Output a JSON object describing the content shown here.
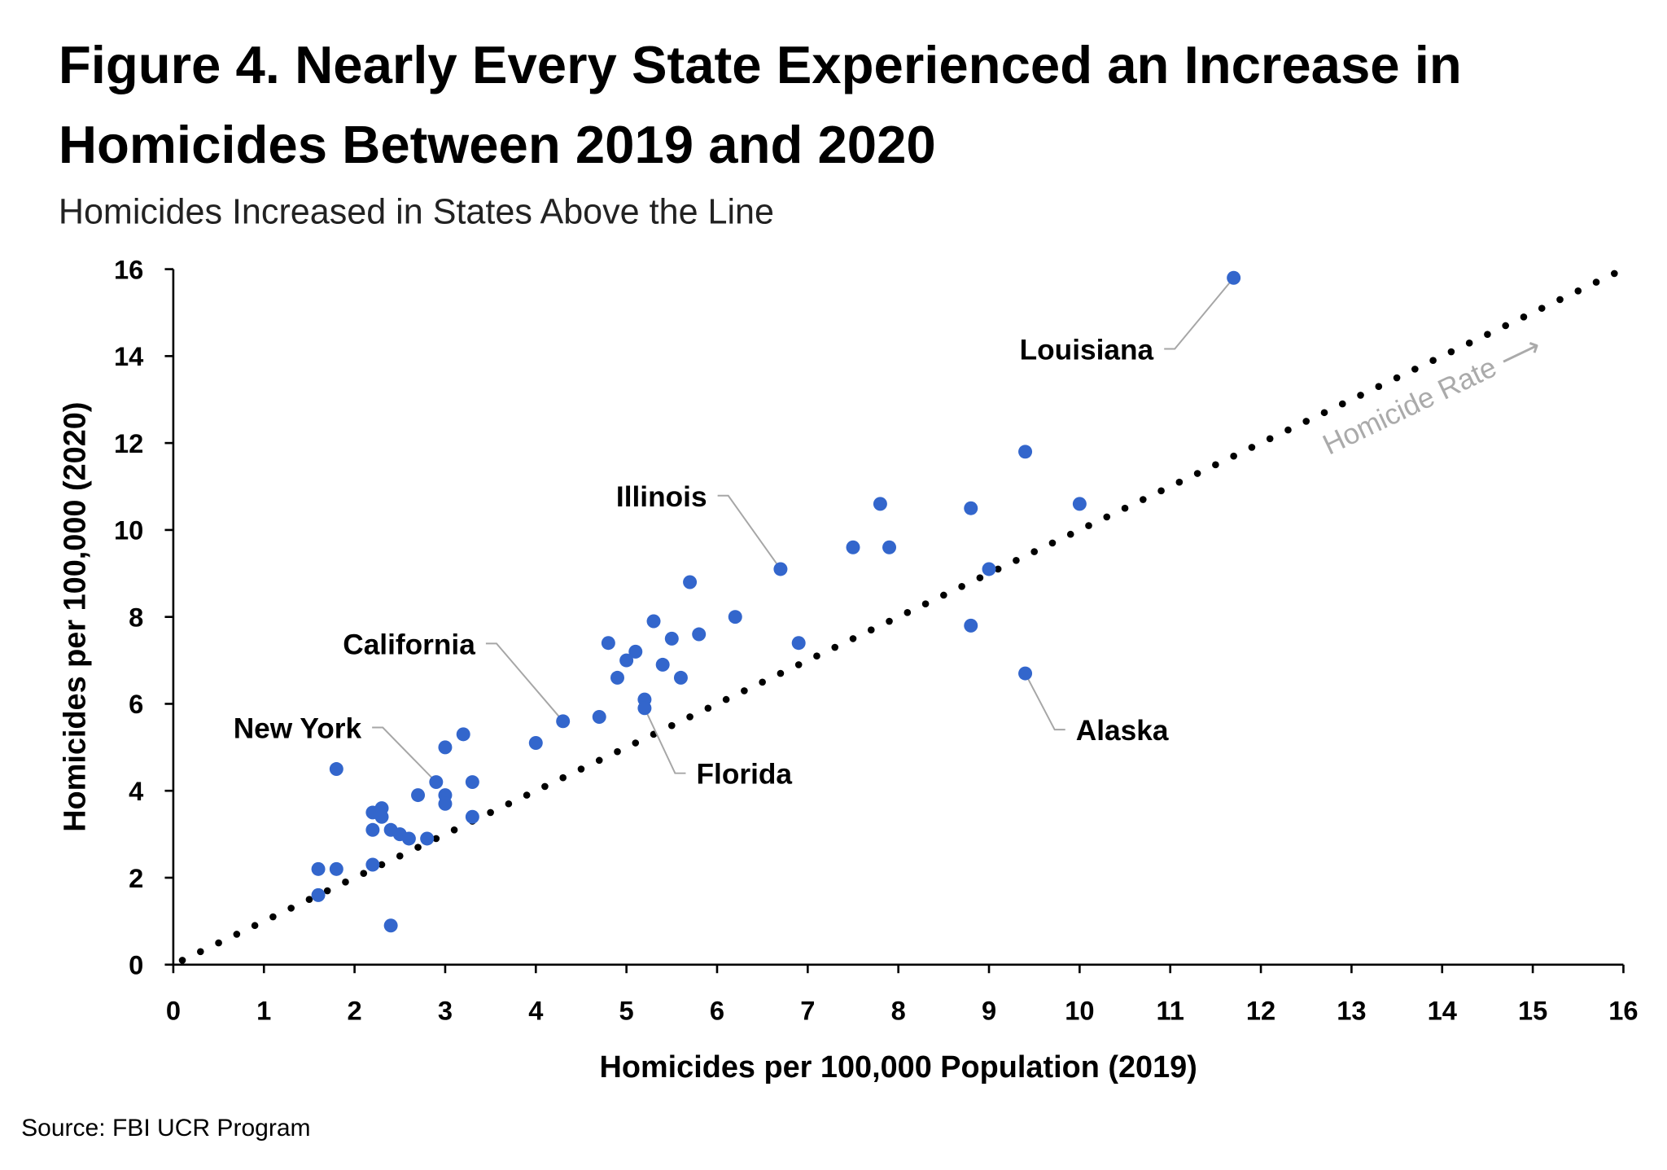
{
  "chart_data": {
    "type": "scatter",
    "title": "Figure 4. Nearly Every State Experienced an Increase in Homicides Between 2019 and 2020",
    "title_lines": [
      "Figure 4. Nearly Every State Experienced an Increase in",
      "Homicides Between 2019 and 2020"
    ],
    "subtitle": "Homicides Increased in States Above the Line",
    "xlabel": "Homicides per 100,000 Population (2019)",
    "ylabel": "Homicides per 100,000 (2020)",
    "xlim": [
      0,
      16
    ],
    "ylim": [
      0,
      16
    ],
    "xticks": [
      "0",
      "1",
      "2",
      "3",
      "4",
      "5",
      "6",
      "7",
      "8",
      "9",
      "10",
      "11",
      "12",
      "13",
      "14",
      "15",
      "16"
    ],
    "yticks": [
      "0",
      "2",
      "4",
      "6",
      "8",
      "10",
      "12",
      "14",
      "16"
    ],
    "grid": false,
    "point_color": "#3366cc",
    "reference_line": {
      "label": "Homicide Rate ⟶",
      "from": [
        0,
        0
      ],
      "to": [
        16,
        16
      ],
      "style": "dotted",
      "color": "#000000"
    },
    "points": [
      [
        1.6,
        2.2
      ],
      [
        1.6,
        1.6
      ],
      [
        1.8,
        2.2
      ],
      [
        1.8,
        4.5
      ],
      [
        2.2,
        3.5
      ],
      [
        2.2,
        3.1
      ],
      [
        2.2,
        2.3
      ],
      [
        2.3,
        3.6
      ],
      [
        2.3,
        3.4
      ],
      [
        2.4,
        3.1
      ],
      [
        2.5,
        3.0
      ],
      [
        2.6,
        2.9
      ],
      [
        2.4,
        0.9
      ],
      [
        2.7,
        3.9
      ],
      [
        2.8,
        2.9
      ],
      [
        2.9,
        4.2
      ],
      [
        3.0,
        5.0
      ],
      [
        3.0,
        3.9
      ],
      [
        3.0,
        3.7
      ],
      [
        3.2,
        5.3
      ],
      [
        3.3,
        4.2
      ],
      [
        3.3,
        3.4
      ],
      [
        4.0,
        5.1
      ],
      [
        4.3,
        5.6
      ],
      [
        4.7,
        5.7
      ],
      [
        4.8,
        7.4
      ],
      [
        4.9,
        6.6
      ],
      [
        5.0,
        7.0
      ],
      [
        5.1,
        7.2
      ],
      [
        5.2,
        6.1
      ],
      [
        5.2,
        5.9
      ],
      [
        5.3,
        7.9
      ],
      [
        5.4,
        6.9
      ],
      [
        5.5,
        7.5
      ],
      [
        5.6,
        6.6
      ],
      [
        5.7,
        8.8
      ],
      [
        5.8,
        7.6
      ],
      [
        6.2,
        8.0
      ],
      [
        6.7,
        9.1
      ],
      [
        6.9,
        7.4
      ],
      [
        7.5,
        9.6
      ],
      [
        7.8,
        10.6
      ],
      [
        7.9,
        9.6
      ],
      [
        8.8,
        10.5
      ],
      [
        8.8,
        7.8
      ],
      [
        9.0,
        9.1
      ],
      [
        9.4,
        11.8
      ],
      [
        9.4,
        6.7
      ],
      [
        10.0,
        10.6
      ],
      [
        11.7,
        15.8
      ]
    ],
    "annotations": [
      {
        "label": "Louisiana",
        "x": 11.7,
        "y": 15.8
      },
      {
        "label": "Illinois",
        "x": 6.7,
        "y": 9.1
      },
      {
        "label": "California",
        "x": 4.3,
        "y": 5.6
      },
      {
        "label": "New York",
        "x": 2.9,
        "y": 4.2
      },
      {
        "label": "Florida",
        "x": 5.2,
        "y": 5.9
      },
      {
        "label": "Alaska",
        "x": 9.4,
        "y": 6.7
      }
    ],
    "source": "Source: FBI UCR Program"
  }
}
